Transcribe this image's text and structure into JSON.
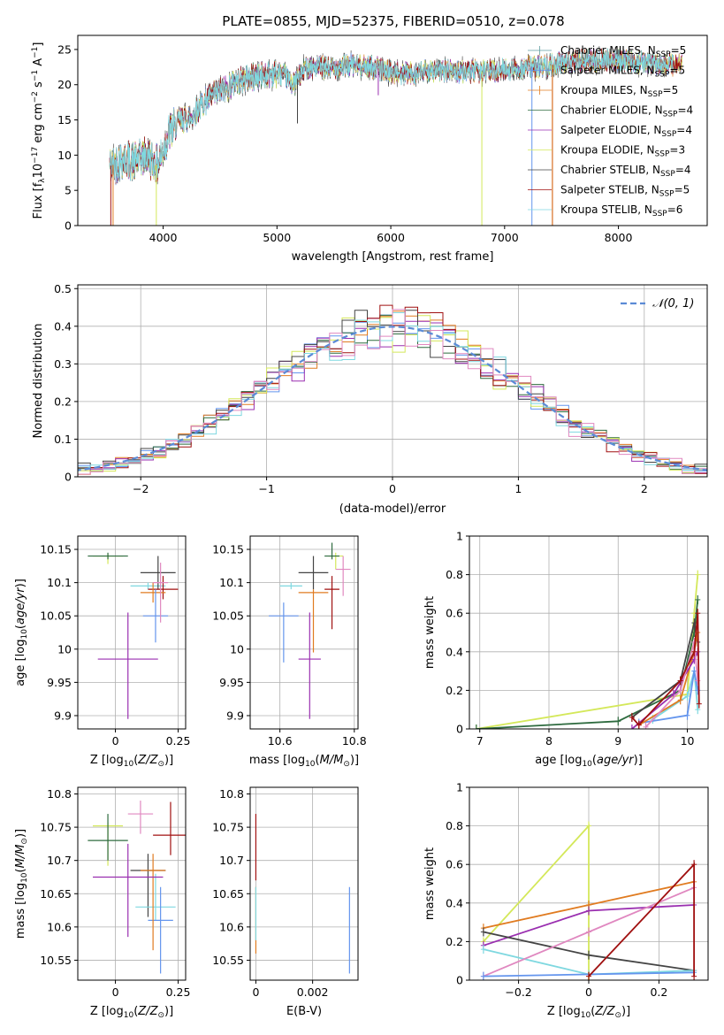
{
  "title": "PLATE=0855, MJD=52375, FIBERID=0510, z=0.078",
  "colors": [
    "#5f9ea0",
    "#6495ed",
    "#e07b20",
    "#2e6b3f",
    "#9a2fb0",
    "#d4e85a",
    "#444444",
    "#a01010",
    "#7fd8e0",
    "#e088c0"
  ],
  "chart_data": [
    {
      "id": "spectrum",
      "type": "line",
      "xlabel": "wavelength [Angstrom, rest frame]",
      "ylabel": "Flux [f_λ 10^-17 erg cm^-2 s^-1 A^-1]",
      "xlim": [
        3250,
        8780
      ],
      "ylim": [
        0,
        27
      ],
      "xticks": [
        4000,
        5000,
        6000,
        7000,
        8000
      ],
      "yticks": [
        0,
        5,
        10,
        15,
        20,
        25
      ],
      "grid": false,
      "legend": "upper-right",
      "legend_labels": [
        {
          "name": "Chabrier MILES, N",
          "sub": "SSP",
          "suffix": "=5",
          "color": "#5f9ea0",
          "marker": "+"
        },
        {
          "name": "Salpeter MILES, N",
          "sub": "SSP",
          "suffix": "=5",
          "color": "#6495ed",
          "marker": "|"
        },
        {
          "name": "Kroupa MILES, N",
          "sub": "SSP",
          "suffix": "=5",
          "color": "#e07b20",
          "marker": "|"
        },
        {
          "name": "Chabrier ELODIE, N",
          "sub": "SSP",
          "suffix": "=4",
          "color": "#2e6b3f",
          "marker": ""
        },
        {
          "name": "Salpeter ELODIE, N",
          "sub": "SSP",
          "suffix": "=4",
          "color": "#9a2fb0",
          "marker": ""
        },
        {
          "name": "Kroupa ELODIE, N",
          "sub": "SSP",
          "suffix": "=3",
          "color": "#d4e85a",
          "marker": ""
        },
        {
          "name": "Chabrier STELIB, N",
          "sub": "SSP",
          "suffix": "=4",
          "color": "#444444",
          "marker": ""
        },
        {
          "name": "Salpeter STELIB, N",
          "sub": "SSP",
          "suffix": "=5",
          "color": "#a01010",
          "marker": ""
        },
        {
          "name": "Kroupa STELIB, N",
          "sub": "SSP",
          "suffix": "=6",
          "color": "#7fd8e0",
          "marker": ""
        }
      ],
      "continuum": {
        "x": [
          3550,
          3650,
          3750,
          3850,
          3950,
          4050,
          4150,
          4250,
          4350,
          4450,
          4550,
          4650,
          4750,
          4850,
          4950,
          5050,
          5150,
          5250,
          5350,
          5450,
          5550,
          5650,
          5750,
          5850,
          5950,
          6100,
          6300,
          6500,
          6700,
          6900,
          7100,
          7300,
          7500,
          7700,
          7900,
          8100,
          8300,
          8500
        ],
        "y": [
          8.5,
          9.5,
          9.0,
          10.0,
          8.5,
          13.0,
          15.0,
          15.5,
          17.5,
          18.5,
          19.5,
          20.5,
          21.0,
          21.2,
          21.6,
          21.5,
          20.0,
          22.5,
          22.5,
          22.3,
          22.5,
          22.8,
          22.6,
          22.5,
          22.0,
          21.5,
          21.8,
          22.0,
          21.8,
          22.0,
          22.3,
          22.6,
          23.0,
          23.4,
          23.5,
          23.3,
          23.0,
          22.8
        ]
      },
      "dropouts": [
        3540,
        5180,
        5890,
        6800,
        7420
      ]
    },
    {
      "id": "residuals",
      "type": "histogram",
      "xlabel": "(data-model)/error",
      "ylabel": "Normed distribution",
      "xlim": [
        -2.5,
        2.5
      ],
      "ylim": [
        0,
        0.51
      ],
      "xticks": [
        -2,
        -1,
        0,
        1,
        2
      ],
      "yticks": [
        0.0,
        0.1,
        0.2,
        0.3,
        0.4,
        0.5
      ],
      "grid": true,
      "legend": "upper-right",
      "legend_label": "𝒩(0, 1)",
      "bin_width": 0.1,
      "curve": "normal(0,1)"
    },
    {
      "id": "age-z",
      "type": "errorbar",
      "xlabel": "Z [log10(Z/Z⊙)]",
      "ylabel": "age  [log10(age/yr)]",
      "xlim": [
        -0.15,
        0.28
      ],
      "ylim": [
        9.88,
        10.17
      ],
      "xticks": [
        0.0,
        0.25
      ],
      "yticks": [
        9.9,
        9.95,
        10.0,
        10.05,
        10.1,
        10.15
      ],
      "grid": true,
      "points": [
        {
          "x": -0.03,
          "y": 10.14,
          "xerr": 0.06,
          "yerr": [
            0.012,
            0.003
          ],
          "color": "#d4e85a"
        },
        {
          "x": -0.03,
          "y": 10.14,
          "xerr": 0.08,
          "yerr": [
            0.005,
            0.005
          ],
          "color": "#2e6b3f"
        },
        {
          "x": 0.13,
          "y": 10.095,
          "xerr": 0.07,
          "yerr": [
            0.005,
            0.005
          ],
          "color": "#7fd8e0"
        },
        {
          "x": 0.17,
          "y": 10.115,
          "xerr": 0.07,
          "yerr": [
            0.025,
            0.025
          ],
          "color": "#444444"
        },
        {
          "x": 0.19,
          "y": 10.09,
          "xerr": 0.06,
          "yerr": [
            0.015,
            0.02
          ],
          "color": "#a01010"
        },
        {
          "x": 0.15,
          "y": 10.085,
          "xerr": 0.05,
          "yerr": [
            0.015,
            0.015
          ],
          "color": "#e07b20"
        },
        {
          "x": 0.16,
          "y": 10.05,
          "xerr": 0.05,
          "yerr": [
            0.04,
            0.04
          ],
          "color": "#6495ed"
        },
        {
          "x": 0.18,
          "y": 10.1,
          "xerr": 0.03,
          "yerr": [
            0.06,
            0.03
          ],
          "color": "#e088c0"
        },
        {
          "x": 0.05,
          "y": 9.985,
          "xerr": 0.12,
          "yerr": [
            0.09,
            0.07
          ],
          "color": "#9a2fb0"
        }
      ]
    },
    {
      "id": "age-mass",
      "type": "errorbar",
      "xlabel": "mass [log10(M/M⊙)]",
      "ylabel": "",
      "xlim": [
        10.52,
        10.81
      ],
      "ylim": [
        9.88,
        10.17
      ],
      "xticks": [
        10.6,
        10.8
      ],
      "yticks": [
        9.9,
        9.95,
        10.0,
        10.05,
        10.1,
        10.15
      ],
      "grid": true,
      "points": [
        {
          "x": 10.75,
          "y": 10.14,
          "xerr": 0.02,
          "yerr": [
            0.02,
            0.005
          ],
          "color": "#d4e85a"
        },
        {
          "x": 10.74,
          "y": 10.14,
          "xerr": 0.02,
          "yerr": [
            0.005,
            0.02
          ],
          "color": "#2e6b3f"
        },
        {
          "x": 10.63,
          "y": 10.095,
          "xerr": 0.03,
          "yerr": [
            0.005,
            0.005
          ],
          "color": "#7fd8e0"
        },
        {
          "x": 10.69,
          "y": 10.115,
          "xerr": 0.04,
          "yerr": [
            0.025,
            0.025
          ],
          "color": "#444444"
        },
        {
          "x": 10.74,
          "y": 10.09,
          "xerr": 0.02,
          "yerr": [
            0.06,
            0.02
          ],
          "color": "#a01010"
        },
        {
          "x": 10.69,
          "y": 10.085,
          "xerr": 0.04,
          "yerr": [
            0.09,
            0.005
          ],
          "color": "#e07b20"
        },
        {
          "x": 10.61,
          "y": 10.05,
          "xerr": 0.04,
          "yerr": [
            0.07,
            0.02
          ],
          "color": "#6495ed"
        },
        {
          "x": 10.77,
          "y": 10.12,
          "xerr": 0.02,
          "yerr": [
            0.04,
            0.02
          ],
          "color": "#e088c0"
        },
        {
          "x": 10.68,
          "y": 9.985,
          "xerr": 0.03,
          "yerr": [
            0.09,
            0.07
          ],
          "color": "#9a2fb0"
        }
      ]
    },
    {
      "id": "weight-age",
      "type": "line",
      "xlabel": "age  [log10(age/yr)]",
      "ylabel": "mass weight",
      "xlim": [
        6.85,
        10.3
      ],
      "ylim": [
        0,
        1.0
      ],
      "xticks": [
        7,
        8,
        9,
        10
      ],
      "yticks": [
        0.0,
        0.2,
        0.4,
        0.6,
        0.8,
        1.0
      ],
      "grid": true,
      "series": [
        {
          "color": "#d4e85a",
          "points": [
            [
              6.95,
              0.0
            ],
            [
              10.0,
              0.18
            ],
            [
              10.1,
              0.6
            ],
            [
              10.15,
              0.8
            ]
          ]
        },
        {
          "color": "#2e6b3f",
          "points": [
            [
              6.95,
              0.0
            ],
            [
              9.0,
              0.04
            ],
            [
              9.9,
              0.2
            ],
            [
              10.1,
              0.5
            ],
            [
              10.15,
              0.67
            ]
          ]
        },
        {
          "color": "#7fd8e0",
          "points": [
            [
              9.5,
              0.05
            ],
            [
              10.0,
              0.17
            ],
            [
              10.1,
              0.3
            ],
            [
              10.15,
              0.1
            ]
          ]
        },
        {
          "color": "#444444",
          "points": [
            [
              9.2,
              0.06
            ],
            [
              9.9,
              0.25
            ],
            [
              10.1,
              0.55
            ],
            [
              10.15,
              0.45
            ]
          ]
        },
        {
          "color": "#6495ed",
          "points": [
            [
              9.3,
              0.03
            ],
            [
              10.0,
              0.07
            ],
            [
              10.1,
              0.3
            ],
            [
              10.15,
              0.2
            ]
          ]
        },
        {
          "color": "#e07b20",
          "points": [
            [
              9.3,
              0.02
            ],
            [
              9.9,
              0.15
            ],
            [
              10.1,
              0.4
            ],
            [
              10.15,
              0.5
            ]
          ]
        },
        {
          "color": "#9a2fb0",
          "points": [
            [
              9.2,
              0.0
            ],
            [
              9.8,
              0.18
            ],
            [
              10.1,
              0.36
            ],
            [
              10.15,
              0.4
            ]
          ]
        },
        {
          "color": "#e088c0",
          "points": [
            [
              9.4,
              0.01
            ],
            [
              9.9,
              0.2
            ],
            [
              10.1,
              0.45
            ],
            [
              10.15,
              0.25
            ]
          ]
        },
        {
          "color": "#a01010",
          "points": [
            [
              9.2,
              0.06
            ],
            [
              9.3,
              0.02
            ],
            [
              9.9,
              0.25
            ],
            [
              10.1,
              0.4
            ],
            [
              10.15,
              0.6
            ],
            [
              10.17,
              0.13
            ]
          ]
        }
      ]
    },
    {
      "id": "mass-z",
      "type": "errorbar",
      "xlabel": "Z [log10(Z/Z⊙)]",
      "ylabel": "mass [log10(M/M⊙)]",
      "xlim": [
        -0.15,
        0.28
      ],
      "ylim": [
        10.52,
        10.81
      ],
      "xticks": [
        0.0,
        0.25
      ],
      "yticks": [
        10.55,
        10.6,
        10.65,
        10.7,
        10.75,
        10.8
      ],
      "grid": true,
      "points": [
        {
          "x": -0.03,
          "y": 10.752,
          "xerr": 0.06,
          "yerr": [
            0.06,
            0.005
          ],
          "color": "#d4e85a"
        },
        {
          "x": -0.03,
          "y": 10.73,
          "xerr": 0.08,
          "yerr": [
            0.03,
            0.04
          ],
          "color": "#2e6b3f"
        },
        {
          "x": 0.1,
          "y": 10.77,
          "xerr": 0.05,
          "yerr": [
            0.03,
            0.02
          ],
          "color": "#e088c0"
        },
        {
          "x": 0.22,
          "y": 10.738,
          "xerr": 0.07,
          "yerr": [
            0.03,
            0.05
          ],
          "color": "#a01010"
        },
        {
          "x": 0.13,
          "y": 10.685,
          "xerr": 0.07,
          "yerr": [
            0.07,
            0.025
          ],
          "color": "#444444"
        },
        {
          "x": 0.16,
          "y": 10.63,
          "xerr": 0.08,
          "yerr": [
            0.02,
            0.05
          ],
          "color": "#7fd8e0"
        },
        {
          "x": 0.18,
          "y": 10.61,
          "xerr": 0.05,
          "yerr": [
            0.08,
            0.05
          ],
          "color": "#6495ed"
        },
        {
          "x": 0.15,
          "y": 10.685,
          "xerr": 0.05,
          "yerr": [
            0.12,
            0.025
          ],
          "color": "#e07b20"
        },
        {
          "x": 0.05,
          "y": 10.675,
          "xerr": 0.14,
          "yerr": [
            0.09,
            0.05
          ],
          "color": "#9a2fb0"
        }
      ]
    },
    {
      "id": "mass-ebv",
      "type": "errorbar",
      "xlabel": "E(B-V)",
      "ylabel": "",
      "xlim": [
        -0.0002,
        0.0036
      ],
      "ylim": [
        10.52,
        10.81
      ],
      "xticks": [
        0.0,
        0.002
      ],
      "yticks": [
        10.55,
        10.6,
        10.65,
        10.7,
        10.75,
        10.8
      ],
      "grid": true,
      "points": [
        {
          "x": 0.0,
          "y": 10.7,
          "xerr": 0,
          "yerr": [
            0.03,
            0.07
          ],
          "color": "#a01010"
        },
        {
          "x": 0.0,
          "y": 10.6,
          "xerr": 0,
          "yerr": [
            0.04,
            0.06
          ],
          "color": "#e07b20"
        },
        {
          "x": 0.0,
          "y": 10.62,
          "xerr": 0,
          "yerr": [
            0.04,
            0.04
          ],
          "color": "#7fd8e0"
        },
        {
          "x": 0.0033,
          "y": 10.6,
          "xerr": 0,
          "yerr": [
            0.07,
            0.06
          ],
          "color": "#6495ed"
        }
      ]
    },
    {
      "id": "weight-z",
      "type": "line",
      "xlabel": "Z [log10(Z/Z⊙)]",
      "ylabel": "mass weight",
      "xlim": [
        -0.34,
        0.34
      ],
      "ylim": [
        0,
        1.0
      ],
      "xticks": [
        -0.2,
        0.0,
        0.2
      ],
      "yticks": [
        0.0,
        0.2,
        0.4,
        0.6,
        0.8,
        1.0
      ],
      "grid": true,
      "series": [
        {
          "color": "#d4e85a",
          "points": [
            [
              -0.3,
              0.2
            ],
            [
              0.0,
              0.8
            ],
            [
              0.0,
              0.0
            ]
          ]
        },
        {
          "color": "#e07b20",
          "points": [
            [
              -0.3,
              0.27
            ],
            [
              0.0,
              0.39
            ],
            [
              0.3,
              0.51
            ]
          ]
        },
        {
          "color": "#9a2fb0",
          "points": [
            [
              -0.3,
              0.18
            ],
            [
              0.0,
              0.36
            ],
            [
              0.3,
              0.39
            ]
          ]
        },
        {
          "color": "#444444",
          "points": [
            [
              -0.3,
              0.25
            ],
            [
              0.0,
              0.13
            ],
            [
              0.3,
              0.05
            ]
          ]
        },
        {
          "color": "#7fd8e0",
          "points": [
            [
              -0.3,
              0.16
            ],
            [
              0.0,
              0.03
            ],
            [
              0.3,
              0.05
            ]
          ]
        },
        {
          "color": "#e088c0",
          "points": [
            [
              -0.3,
              0.02
            ],
            [
              0.0,
              0.25
            ],
            [
              0.3,
              0.48
            ]
          ]
        },
        {
          "color": "#6495ed",
          "points": [
            [
              -0.3,
              0.02
            ],
            [
              0.3,
              0.04
            ]
          ]
        },
        {
          "color": "#a01010",
          "points": [
            [
              0.0,
              0.02
            ],
            [
              0.3,
              0.6
            ],
            [
              0.3,
              0.02
            ]
          ]
        }
      ]
    }
  ]
}
